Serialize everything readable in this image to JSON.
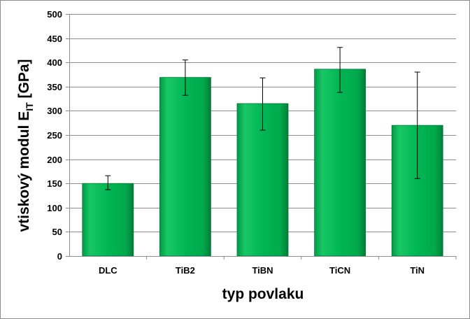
{
  "chart_data": {
    "type": "bar",
    "categories": [
      "DLC",
      "TiB2",
      "TiBN",
      "TiCN",
      "TiN"
    ],
    "values": [
      150,
      369,
      315,
      386,
      270
    ],
    "error_bars": [
      {
        "low": 137,
        "high": 166
      },
      {
        "low": 332,
        "high": 405
      },
      {
        "low": 260,
        "high": 368
      },
      {
        "low": 338,
        "high": 431
      },
      {
        "low": 160,
        "high": 380
      }
    ],
    "xlabel": "typ povlaku",
    "ylabel": {
      "main": "vtiskový modul E",
      "subscript": "IT",
      "unit": " [GPa]"
    },
    "ylim": [
      0,
      500
    ],
    "yticks": [
      0,
      50,
      100,
      150,
      200,
      250,
      300,
      350,
      400,
      450,
      500
    ],
    "grid": true,
    "bar_color": "#00b050",
    "bar_color_dark": "#007a35",
    "grid_color": "#8c8c8c"
  }
}
